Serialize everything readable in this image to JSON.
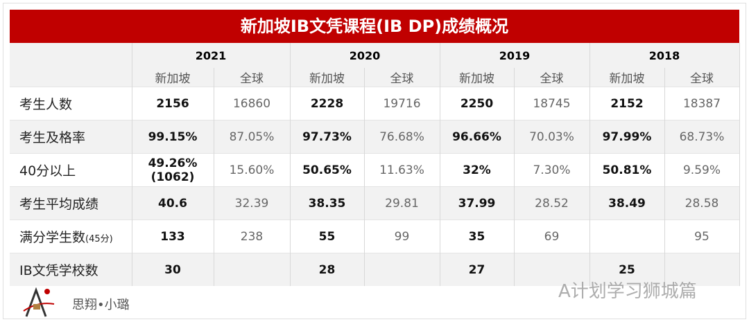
{
  "title": "新加坡IB文凭课程(IB DP)成绩概况",
  "years": [
    "2021",
    "2020",
    "2019",
    "2018"
  ],
  "sub": {
    "sg": "新加坡",
    "global": "全球"
  },
  "rows": [
    {
      "label": "考生人数",
      "values": [
        "2156",
        "16860",
        "2228",
        "19716",
        "2250",
        "18745",
        "2152",
        "18387"
      ]
    },
    {
      "label": "考生及格率",
      "values": [
        "99.15%",
        "87.05%",
        "97.73%",
        "76.68%",
        "96.66%",
        "70.03%",
        "97.99%",
        "68.73%"
      ]
    },
    {
      "label": "40分以上",
      "values": [
        "49.26%(1062)",
        "15.60%",
        "50.65%",
        "11.63%",
        "32%",
        "7.30%",
        "50.81%",
        "9.59%"
      ]
    },
    {
      "label": "考生平均成绩",
      "values": [
        "40.6",
        "32.39",
        "38.35",
        "29.81",
        "37.99",
        "28.52",
        "38.49",
        "28.58"
      ]
    },
    {
      "label": "满分学生数",
      "label_note": "(45分)",
      "values": [
        "133",
        "238",
        "55",
        "99",
        "35",
        "69",
        "",
        "95"
      ]
    },
    {
      "label": "IB文凭学校数",
      "values": [
        "30",
        "",
        "28",
        "",
        "27",
        "",
        "25",
        ""
      ]
    }
  ],
  "footer": {
    "brand": "思翔•小璐",
    "watermark": "A计划学习狮城篇"
  },
  "colors": {
    "title_bg": "#c00000"
  }
}
